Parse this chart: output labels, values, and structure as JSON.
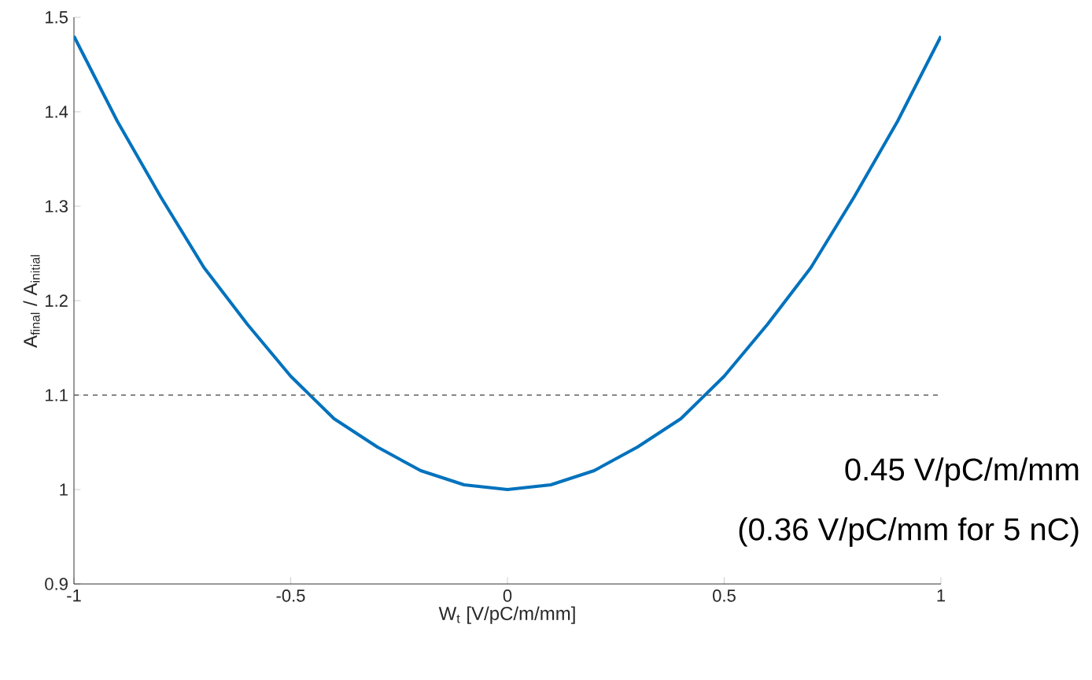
{
  "chart_data": {
    "type": "line",
    "xlabel": "W$_{t}$ [V/pC/m/mm]",
    "ylabel": "A$_{final}$ / A$_{initial}$",
    "x": [
      -1,
      -0.9,
      -0.8,
      -0.7,
      -0.6,
      -0.5,
      -0.4,
      -0.3,
      -0.2,
      -0.1,
      0,
      0.1,
      0.2,
      0.3,
      0.4,
      0.5,
      0.6,
      0.7,
      0.8,
      0.9,
      1
    ],
    "series": [
      {
        "color": "#0072bd",
        "values": [
          1.48,
          1.39,
          1.31,
          1.235,
          1.175,
          1.12,
          1.075,
          1.045,
          1.02,
          1.005,
          1.0,
          1.005,
          1.02,
          1.045,
          1.075,
          1.12,
          1.175,
          1.235,
          1.31,
          1.39,
          1.48
        ]
      }
    ],
    "xlim": [
      -1,
      1
    ],
    "ylim": [
      0.9,
      1.5
    ],
    "xticks": [
      -1,
      -0.5,
      0,
      0.5,
      1
    ],
    "yticks": [
      0.9,
      1,
      1.1,
      1.2,
      1.3,
      1.4,
      1.5
    ],
    "ref_lines": [
      {
        "axis": "y",
        "value": 1.1,
        "color": "#606060",
        "line_style": "dashed"
      }
    ],
    "annotations": [
      "0.45 V/pC/m/mm",
      "(0.36 V/pC/mm for 5 nC)"
    ],
    "marker": "none",
    "line_style": "solid"
  }
}
